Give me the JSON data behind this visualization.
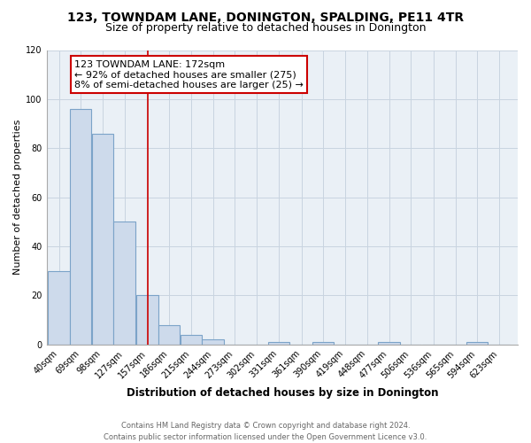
{
  "title": "123, TOWNDAM LANE, DONINGTON, SPALDING, PE11 4TR",
  "subtitle": "Size of property relative to detached houses in Donington",
  "xlabel": "Distribution of detached houses by size in Donington",
  "ylabel": "Number of detached properties",
  "bar_labels": [
    "40sqm",
    "69sqm",
    "98sqm",
    "127sqm",
    "157sqm",
    "186sqm",
    "215sqm",
    "244sqm",
    "273sqm",
    "302sqm",
    "331sqm",
    "361sqm",
    "390sqm",
    "419sqm",
    "448sqm",
    "477sqm",
    "506sqm",
    "536sqm",
    "565sqm",
    "594sqm",
    "623sqm"
  ],
  "bar_values": [
    30,
    96,
    86,
    50,
    20,
    8,
    4,
    2,
    0,
    0,
    1,
    0,
    1,
    0,
    0,
    1,
    0,
    0,
    0,
    1,
    0
  ],
  "bar_color": "#cddaeb",
  "bar_edge_color": "#7ba3c8",
  "vline_color": "#cc0000",
  "annotation_title": "123 TOWNDAM LANE: 172sqm",
  "annotation_line1": "← 92% of detached houses are smaller (275)",
  "annotation_line2": "8% of semi-detached houses are larger (25) →",
  "annotation_box_color": "#ffffff",
  "annotation_box_edge": "#cc0000",
  "ylim_min": 0,
  "ylim_max": 120,
  "bin_width": 29,
  "vline_x": 172,
  "footer1": "Contains HM Land Registry data © Crown copyright and database right 2024.",
  "footer2": "Contains public sector information licensed under the Open Government Licence v3.0.",
  "title_fontsize": 10,
  "subtitle_fontsize": 9,
  "xlabel_fontsize": 8.5,
  "ylabel_fontsize": 8,
  "tick_fontsize": 7,
  "footer_fontsize": 6,
  "annotation_fontsize": 8,
  "grid_color": "#c8d4e0",
  "bg_color": "#eaf0f6",
  "yticks": [
    0,
    20,
    40,
    60,
    80,
    100,
    120
  ]
}
